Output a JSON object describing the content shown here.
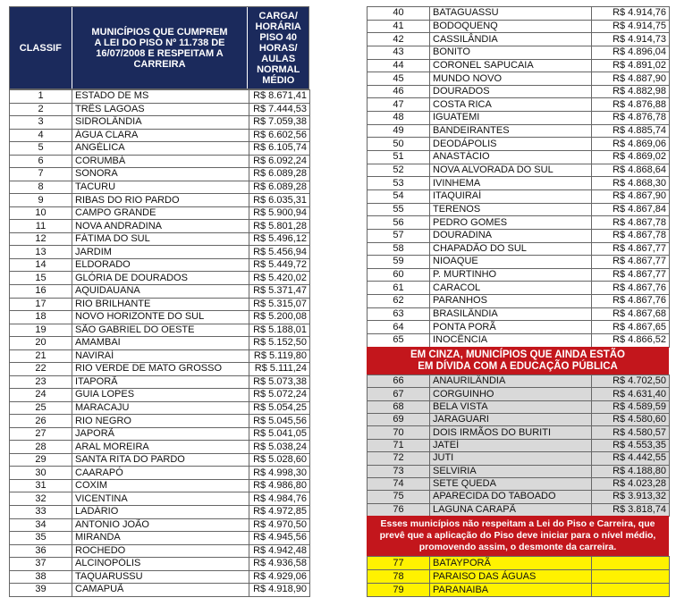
{
  "left_table": {
    "header": {
      "classif": "CLASSIF",
      "municipios": [
        "MUNICÍPIOS QUE CUMPREM",
        "A LEI DO PISO Nº 11.738 DE",
        "16/07/2008 E RESPEITAM A",
        "CARREIRA"
      ],
      "carga": [
        "CARGA/",
        "HORÁRIA",
        "PISO 40",
        "HORAS/",
        "AULAS",
        "NORMAL",
        "MÉDIO"
      ]
    },
    "rows": [
      [
        1,
        "ESTADO DE MS",
        "R$ 8.671,41"
      ],
      [
        2,
        "TRÊS LAGOAS",
        "R$ 7.444,53"
      ],
      [
        3,
        "SIDROLÂNDIA",
        "R$ 7.059,38"
      ],
      [
        4,
        "ÁGUA CLARA",
        "R$ 6.602,56"
      ],
      [
        5,
        "ANGÉLICA",
        "R$ 6.105,74"
      ],
      [
        6,
        "CORUMBÁ",
        "R$ 6.092,24"
      ],
      [
        7,
        "SONORA",
        "R$ 6.089,28"
      ],
      [
        8,
        "TACURU",
        "R$ 6.089,28"
      ],
      [
        9,
        "RIBAS DO RIO PARDO",
        "R$ 6.035,31"
      ],
      [
        10,
        "CAMPO GRANDE",
        "R$ 5.900,94"
      ],
      [
        11,
        "NOVA ANDRADINA",
        "R$ 5.801,28"
      ],
      [
        12,
        "FÁTIMA DO SUL",
        "R$ 5.496,12"
      ],
      [
        13,
        "JARDIM",
        "R$ 5.456,94"
      ],
      [
        14,
        "ELDORADO",
        "R$ 5.449,72"
      ],
      [
        15,
        "GLÓRIA DE DOURADOS",
        "R$ 5.420,02"
      ],
      [
        16,
        "AQUIDAUANA",
        "R$ 5.371,47"
      ],
      [
        17,
        "RIO BRILHANTE",
        "R$ 5.315,07"
      ],
      [
        18,
        "NOVO HORIZONTE DO SUL",
        "R$ 5.200,08"
      ],
      [
        19,
        "SÃO GABRIEL DO OESTE",
        "R$ 5.188,01"
      ],
      [
        20,
        "AMAMBAI",
        "R$ 5.152,50"
      ],
      [
        21,
        "NAVIRAÍ",
        "R$ 5.119,80"
      ],
      [
        22,
        "RIO VERDE DE MATO GROSSO",
        "R$ 5.111,24"
      ],
      [
        23,
        "ITAPORÃ",
        "R$ 5.073,38"
      ],
      [
        24,
        "GUIA LOPES",
        "R$ 5.072,24"
      ],
      [
        25,
        "MARACAJU",
        "R$ 5.054,25"
      ],
      [
        26,
        "RIO NEGRO",
        "R$ 5.045,56"
      ],
      [
        27,
        "JAPORÃ",
        "R$ 5.041,05"
      ],
      [
        28,
        "ARAL MOREIRA",
        "R$ 5.038,24"
      ],
      [
        29,
        "SANTA RITA DO PARDO",
        "R$ 5.028,60"
      ],
      [
        30,
        "CAARAPÓ",
        "R$ 4.998,30"
      ],
      [
        31,
        "COXIM",
        "R$ 4.986,80"
      ],
      [
        32,
        "VICENTINA",
        "R$ 4.984,76"
      ],
      [
        33,
        "LADÁRIO",
        "R$ 4.972,85"
      ],
      [
        34,
        "ANTONIO JOÃO",
        "R$ 4.970,50"
      ],
      [
        35,
        "MIRANDA",
        "R$ 4.945,56"
      ],
      [
        36,
        "ROCHEDO",
        "R$ 4.942,48"
      ],
      [
        37,
        "ALCINOPÓLIS",
        "R$ 4.936,58"
      ],
      [
        38,
        "TAQUARUSSU",
        "R$ 4.929,06"
      ],
      [
        39,
        "CAMAPUÃ",
        "R$ 4.918,90"
      ]
    ]
  },
  "right_table": {
    "rows": [
      [
        40,
        "BATAGUASSU",
        "R$ 4.914,76"
      ],
      [
        41,
        "BODOQUENQ",
        "R$ 4.914,75"
      ],
      [
        42,
        "CASSILÂNDIA",
        "R$ 4.914,73"
      ],
      [
        43,
        "BONITO",
        "R$ 4.896,04"
      ],
      [
        44,
        "CORONEL SAPUCAIA",
        "R$ 4.891,02"
      ],
      [
        45,
        "MUNDO NOVO",
        "R$ 4.887,90"
      ],
      [
        46,
        "DOURADOS",
        "R$ 4.882,98"
      ],
      [
        47,
        "COSTA RICA",
        "R$ 4.876,88"
      ],
      [
        48,
        "IGUATEMI",
        "R$ 4.876,78"
      ],
      [
        49,
        "BANDEIRANTES",
        "R$ 4.885,74"
      ],
      [
        50,
        "DEODÁPOLIS",
        "R$ 4.869,06"
      ],
      [
        51,
        "ANASTÁCIO",
        "R$ 4.869,02"
      ],
      [
        52,
        "NOVA ALVORADA DO SUL",
        "R$ 4.868,64"
      ],
      [
        53,
        "IVINHEMA",
        "R$ 4.868,30"
      ],
      [
        54,
        "ITAQUIRAÍ",
        "R$ 4.867,90"
      ],
      [
        55,
        "TERENOS",
        "R$ 4.867,84"
      ],
      [
        56,
        "PEDRO GOMES",
        "R$ 4.867,78"
      ],
      [
        57,
        "DOURADINA",
        "R$ 4.867,78"
      ],
      [
        58,
        "CHAPADÃO DO SUL",
        "R$ 4.867,77"
      ],
      [
        59,
        "NIOAQUE",
        "R$ 4.867,77"
      ],
      [
        60,
        "P. MURTINHO",
        "R$ 4.867,77"
      ],
      [
        61,
        "CARACOL",
        "R$ 4.867,76"
      ],
      [
        62,
        "PARANHOS",
        "R$ 4.867,76"
      ],
      [
        63,
        "BRASILÂNDIA",
        "R$ 4.867,68"
      ],
      [
        64,
        "PONTA PORÃ",
        "R$ 4.867,65"
      ],
      [
        65,
        "INOCÊNCIA",
        "R$ 4.866,52"
      ]
    ],
    "banner": [
      "EM CINZA, MUNICÍPIOS QUE AINDA ESTÃO",
      "EM DÍVIDA COM A EDUCAÇÃO PÚBLICA"
    ],
    "gray_rows": [
      [
        66,
        "ANAURILÂNDIA",
        "R$ 4.702,50"
      ],
      [
        67,
        "CORGUINHO",
        "R$ 4.631,40"
      ],
      [
        68,
        "BELA VISTA",
        "R$ 4.589,59"
      ],
      [
        69,
        "JARAGUARI",
        "R$ 4.580,60"
      ],
      [
        70,
        "DOIS IRMÃOS DO BURITI",
        "R$ 4.580,57"
      ],
      [
        71,
        "JATEÍ",
        "R$ 4.553,35"
      ],
      [
        72,
        "JUTI",
        "R$ 4.442,55"
      ],
      [
        73,
        "SELVIRIA",
        "R$ 4.188,80"
      ],
      [
        74,
        "SETE QUEDA",
        "R$ 4.023,28"
      ],
      [
        75,
        "APARECIDA DO TABOADO",
        "R$ 3.913,32"
      ],
      [
        76,
        "LAGUNA CARAPÃ",
        "R$ 3.818,74"
      ]
    ],
    "note": [
      "Esses municípios não respeitam a Lei do Piso e Carreira, que",
      "prevê que a aplicação do Piso deve iniciar para o nível médio,",
      "promovendo assim, o desmonte da carreira."
    ],
    "yellow_rows": [
      [
        77,
        "BATAYPORÃ"
      ],
      [
        78,
        "PARAISO DAS ÁGUAS"
      ],
      [
        79,
        "PARANAIBA"
      ]
    ]
  }
}
